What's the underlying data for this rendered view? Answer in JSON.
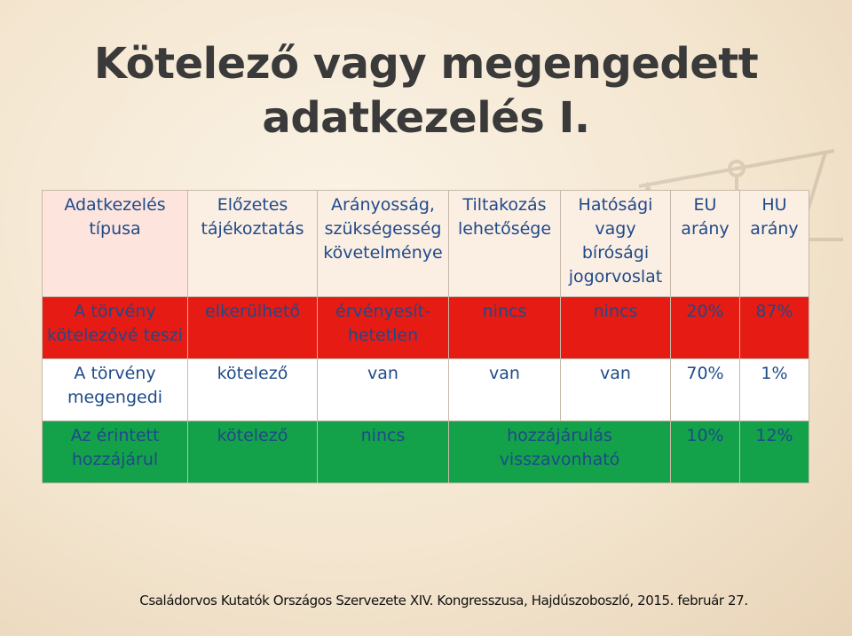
{
  "slide": {
    "title_line1": "Kötelező vagy megengedett",
    "title_line2": "adatkezelés I.",
    "footer": "Családorvos Kutatók Országos Szervezete XIV. Kongresszusa, Hajdúszoboszló, 2015. február 27."
  },
  "table": {
    "headers": {
      "type": [
        "Adatkezelés",
        "típusa"
      ],
      "prior": [
        "Előzetes",
        "tájékoztatás"
      ],
      "proportion": [
        "Arányosság,",
        "szükségesség",
        "követelménye"
      ],
      "objection": [
        "Tiltakozás",
        "lehetősége"
      ],
      "remedy": [
        "Hatósági",
        "vagy",
        "bírósági",
        "jogorvoslat"
      ],
      "eu": [
        "EU",
        "arány"
      ],
      "hu": [
        "HU",
        "arány"
      ]
    },
    "rows": [
      {
        "type": [
          "A törvény",
          "kötelezővé teszi"
        ],
        "prior": "elkerülhető",
        "proportion": [
          "érvényesít-",
          "hetetlen"
        ],
        "objection": "nincs",
        "remedy": "nincs",
        "eu": "20%",
        "hu": "87%",
        "color": "#e51b14"
      },
      {
        "type": [
          "A törvény",
          "megengedi"
        ],
        "prior": "kötelező",
        "proportion": "van",
        "objection": "van",
        "remedy": "van",
        "eu": "70%",
        "hu": "1%",
        "color": "#ffffff"
      },
      {
        "type": [
          "Az érintett",
          "hozzájárul"
        ],
        "prior": "kötelező",
        "proportion": "nincs",
        "merged": [
          "hozzájárulás",
          "visszavonható"
        ],
        "eu": "10%",
        "hu": "12%",
        "color": "#13a24a"
      }
    ]
  },
  "colors": {
    "text_blue": "#1e4a8a",
    "row_red": "#e51b14",
    "row_white": "#ffffff",
    "row_green": "#13a24a",
    "header_bg": "#fbeee3"
  }
}
